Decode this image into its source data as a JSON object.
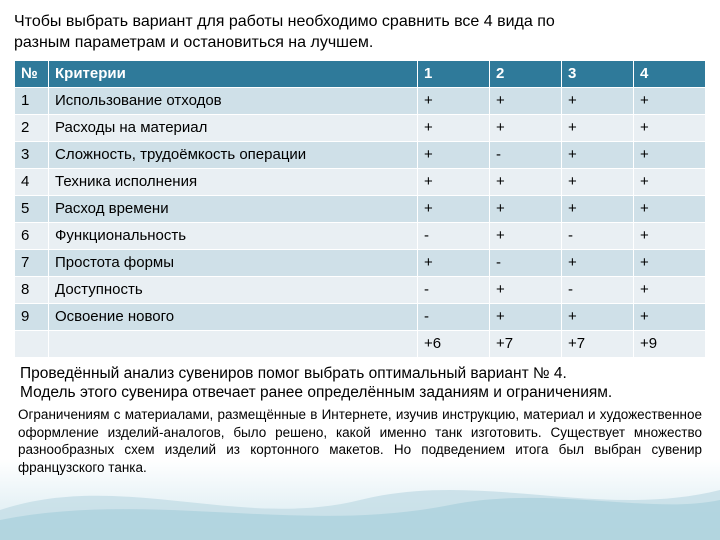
{
  "intro": "Чтобы выбрать вариант для работы необходимо сравнить все 4 вида по разным параметрам и остановиться на лучшем.",
  "table": {
    "headers": [
      "№",
      "Критерии",
      "1",
      "2",
      "3",
      "4"
    ],
    "rows": [
      [
        "1",
        "Использование отходов",
        "+",
        "+",
        "+",
        "+"
      ],
      [
        "2",
        "Расходы на материал",
        "+",
        "+",
        "+",
        "+"
      ],
      [
        "3",
        "Сложность, трудоёмкость операции",
        "+",
        "-",
        "+",
        "+"
      ],
      [
        "4",
        "Техника исполнения",
        "+",
        "+",
        "+",
        "+"
      ],
      [
        "5",
        "Расход времени",
        "+",
        "+",
        "+",
        "+"
      ],
      [
        "6",
        "Функциональность",
        "-",
        "+",
        "-",
        "+"
      ],
      [
        "7",
        "Простота формы",
        "+",
        "-",
        "+",
        "+"
      ],
      [
        "8",
        "Доступность",
        "-",
        "+",
        "-",
        "+"
      ],
      [
        "9",
        "Освоение нового",
        "-",
        "+",
        "+",
        "+"
      ]
    ],
    "totals": [
      "",
      "",
      "+6",
      "+7",
      "+7",
      "+9"
    ]
  },
  "para1_line1": "Проведённый анализ сувениров помог выбрать оптимальный вариант № 4.",
  "para1_line2": "Модель этого сувенира отвечает ранее определённым заданиям и ограничениям.",
  "para2": "Ограничениям с материалами, размещённые в Интернете, изучив инструкцию, материал и художественное оформление изделий-аналогов, было решено, какой именно танк изготовить. Существует множество разнообразных схем изделий из кортонного макетов. Но подведением итога был выбран сувенир французского танка.",
  "colors": {
    "header_bg": "#2f7a9a",
    "row_odd": "#cfe0e8",
    "row_even": "#e9eff3",
    "wave1": "#a8d0dc",
    "wave2": "#c4dde6"
  }
}
